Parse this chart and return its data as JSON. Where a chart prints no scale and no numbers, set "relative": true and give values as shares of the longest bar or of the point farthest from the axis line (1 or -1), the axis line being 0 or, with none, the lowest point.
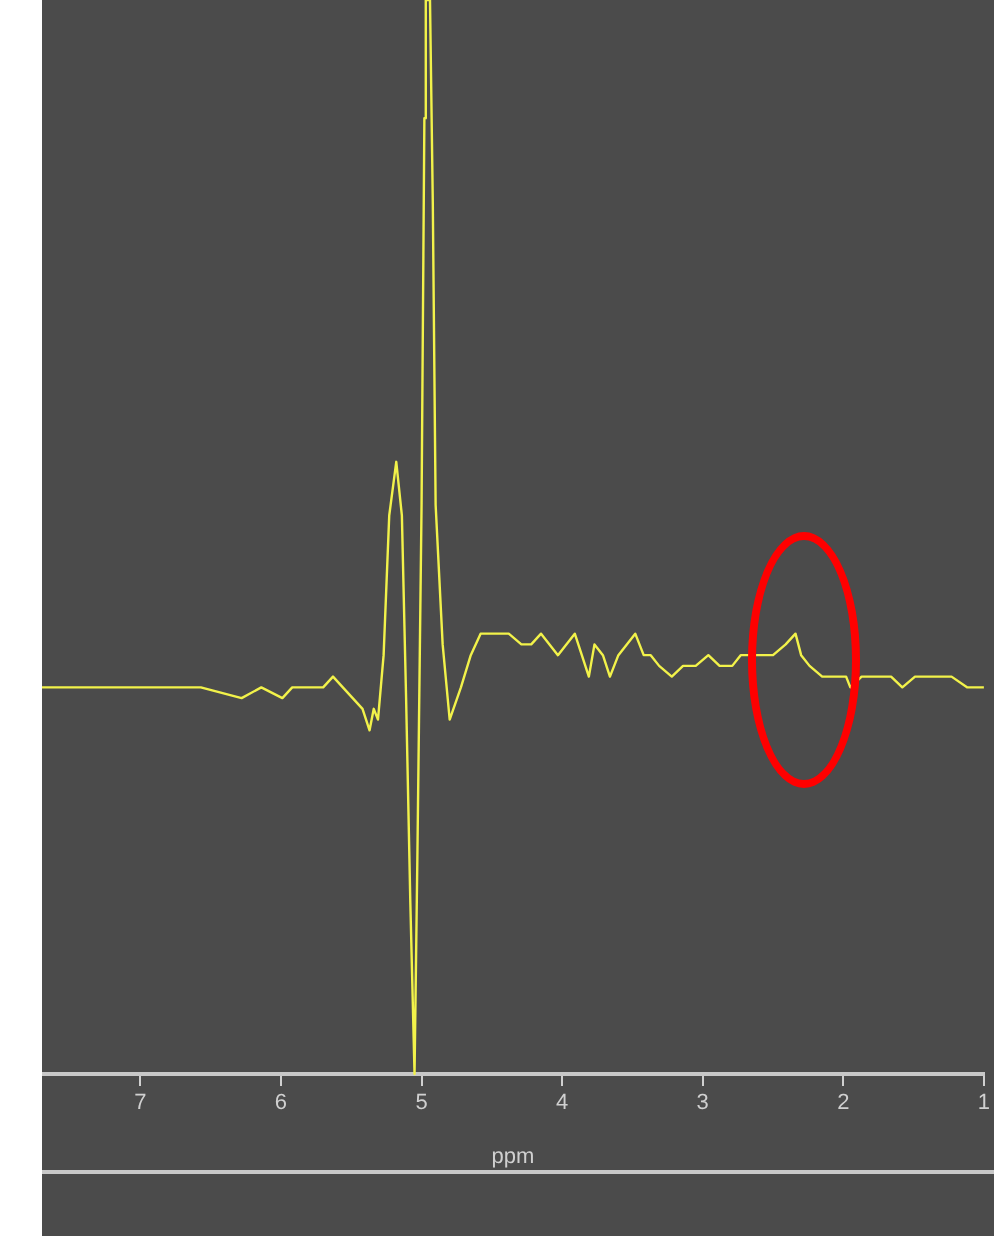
{
  "chart_data": {
    "type": "line",
    "xlabel": "ppm",
    "relative": true,
    "color": "#f2f24a",
    "marker": "none",
    "grid": false,
    "xlim": [
      7.7,
      1.0
    ],
    "xticks": [
      7,
      6,
      5,
      4,
      3,
      2,
      1
    ],
    "x": [
      7.7,
      7.44,
      7.15,
      6.86,
      6.57,
      6.28,
      6.14,
      5.99,
      5.92,
      5.85,
      5.78,
      5.7,
      5.63,
      5.56,
      5.49,
      5.42,
      5.37,
      5.34,
      5.31,
      5.27,
      5.23,
      5.18,
      5.14,
      5.11,
      5.08,
      5.05,
      5.03,
      5.0,
      4.98,
      4.97,
      4.94,
      4.92,
      4.9,
      4.85,
      4.8,
      4.72,
      4.65,
      4.58,
      4.48,
      4.38,
      4.29,
      4.22,
      4.15,
      4.09,
      4.03,
      3.97,
      3.91,
      3.86,
      3.81,
      3.77,
      3.71,
      3.66,
      3.6,
      3.54,
      3.48,
      3.42,
      3.37,
      3.31,
      3.22,
      3.14,
      3.05,
      2.96,
      2.88,
      2.79,
      2.73,
      2.67,
      2.59,
      2.5,
      2.41,
      2.34,
      2.3,
      2.24,
      2.15,
      2.07,
      1.98,
      1.95,
      1.87,
      1.78,
      1.66,
      1.58,
      1.49,
      1.4,
      1.32,
      1.23,
      1.12,
      1.0
    ],
    "values": [
      0.36,
      0.36,
      0.36,
      0.36,
      0.36,
      0.35,
      0.36,
      0.35,
      0.36,
      0.36,
      0.36,
      0.36,
      0.37,
      0.36,
      0.35,
      0.34,
      0.32,
      0.34,
      0.33,
      0.39,
      0.52,
      0.57,
      0.52,
      0.35,
      0.16,
      0,
      0.2,
      0.53,
      0.89,
      1,
      1,
      0.81,
      0.53,
      0.4,
      0.33,
      0.36,
      0.39,
      0.41,
      0.41,
      0.41,
      0.4,
      0.4,
      0.41,
      0.4,
      0.39,
      0.4,
      0.41,
      0.39,
      0.37,
      0.4,
      0.39,
      0.37,
      0.39,
      0.4,
      0.41,
      0.39,
      0.39,
      0.38,
      0.37,
      0.38,
      0.38,
      0.39,
      0.38,
      0.38,
      0.39,
      0.39,
      0.39,
      0.39,
      0.4,
      0.41,
      0.39,
      0.38,
      0.37,
      0.37,
      0.37,
      0.36,
      0.37,
      0.37,
      0.37,
      0.36,
      0.37,
      0.37,
      0.37,
      0.37,
      0.36,
      0.36
    ]
  }
}
